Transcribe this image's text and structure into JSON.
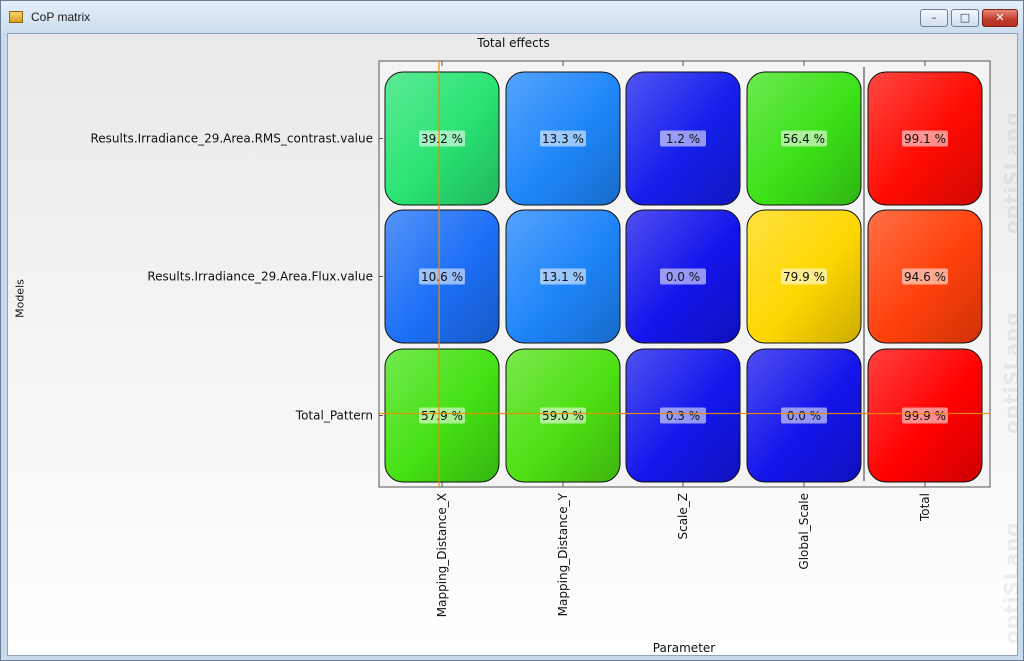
{
  "window": {
    "title": "CoP matrix",
    "buttons": {
      "minimize": "–",
      "maximize": "□",
      "close": "✕"
    }
  },
  "watermark": "optiSLang",
  "chart_data": {
    "type": "heatmap",
    "title": "Total effects",
    "xlabel": "Parameter",
    "ylabel": "Models",
    "columns": [
      "Mapping_Distance_X",
      "Mapping_Distance_Y",
      "Scale_Z",
      "Global_Scale",
      "Total"
    ],
    "rows": [
      "Results.Irradiance_29.Area.RMS_contrast.value",
      "Results.Irradiance_29.Area.Flux.value",
      "Total_Pattern"
    ],
    "values": [
      [
        39.2,
        13.3,
        1.2,
        56.4,
        99.1
      ],
      [
        10.6,
        13.1,
        0.0,
        79.9,
        94.6
      ],
      [
        57.9,
        59.0,
        0.3,
        0.0,
        99.9
      ]
    ],
    "unit": "%",
    "crosshair": {
      "row": "Total_Pattern",
      "column": "Mapping_Distance_X"
    }
  }
}
